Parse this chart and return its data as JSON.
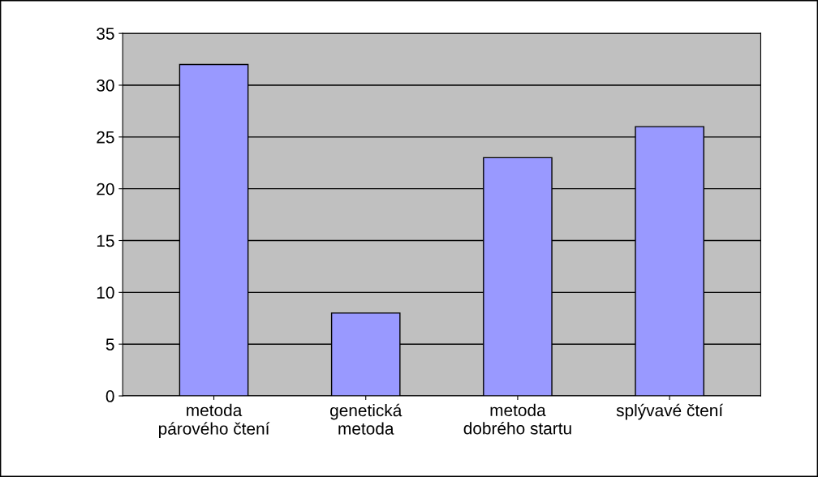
{
  "chart_data": {
    "type": "bar",
    "categories": [
      "metoda\npárového čtení",
      "genetická\nmetoda",
      "metoda\ndobrého startu",
      "splývavé čtení"
    ],
    "values": [
      32,
      8,
      23,
      26
    ],
    "color": "#9999ff",
    "ylim": [
      0,
      35
    ],
    "yticks": [
      0,
      5,
      10,
      15,
      20,
      25,
      30,
      35
    ],
    "grid": "y",
    "legend": false
  }
}
